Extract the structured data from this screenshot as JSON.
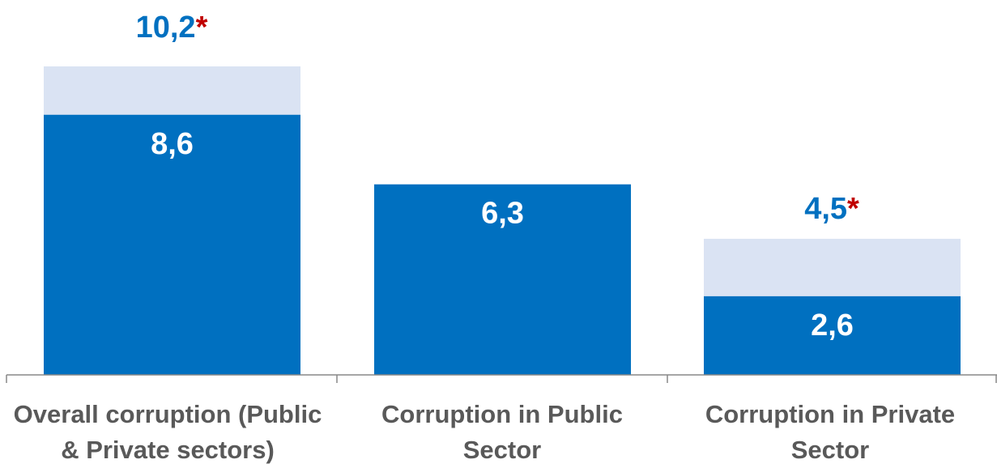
{
  "chart_data": {
    "type": "bar",
    "categories": [
      "Overall corruption (Public & Private sectors)",
      "Corruption in Public Sector",
      "Corruption in Private Sector"
    ],
    "series": [
      {
        "values": [
          8.6,
          6.3,
          2.6
        ],
        "labels": [
          "8,6",
          "6,3",
          "2,6"
        ],
        "color": "#0070c0"
      },
      {
        "values": [
          10.2,
          null,
          4.5
        ],
        "labels": [
          "10,2",
          null,
          "4,5"
        ],
        "marker": "*",
        "color": "#dae3f3"
      }
    ],
    "ylim": [
      0,
      10.2
    ],
    "grid": false,
    "legend": "none",
    "marker_color": "#c00000"
  }
}
